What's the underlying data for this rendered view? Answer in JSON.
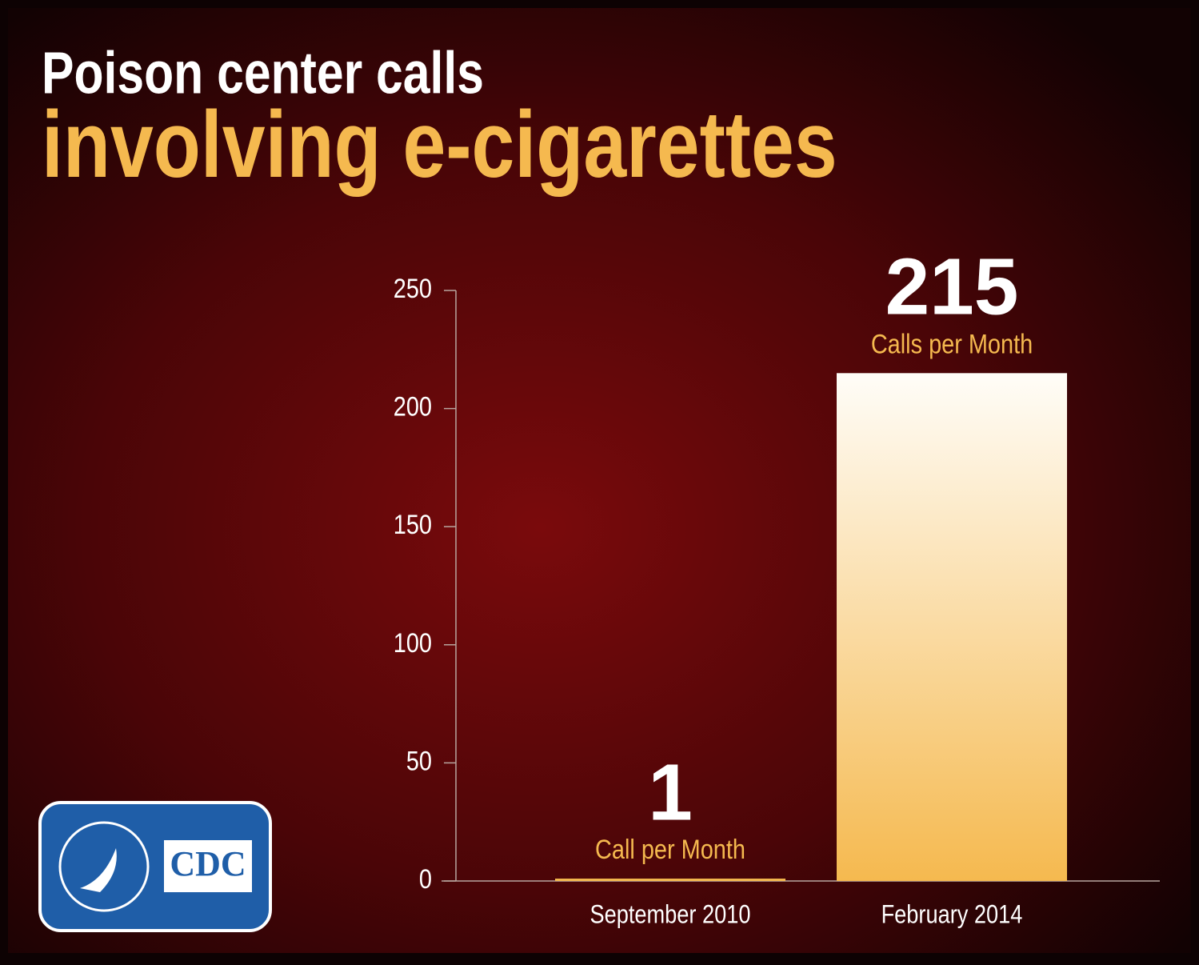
{
  "chart_data": {
    "type": "bar",
    "title": "Poison center calls",
    "subtitle": "involving e-cigarettes",
    "categories": [
      "September 2010",
      "February 2014"
    ],
    "values": [
      1,
      215
    ],
    "annotations": [
      "Call per Month",
      "Calls per Month"
    ],
    "color": "#f5b94f",
    "ylim": [
      0,
      250
    ],
    "yticks": [
      0,
      50,
      100,
      150,
      200,
      250
    ],
    "grid": false,
    "logo": "CDC"
  }
}
